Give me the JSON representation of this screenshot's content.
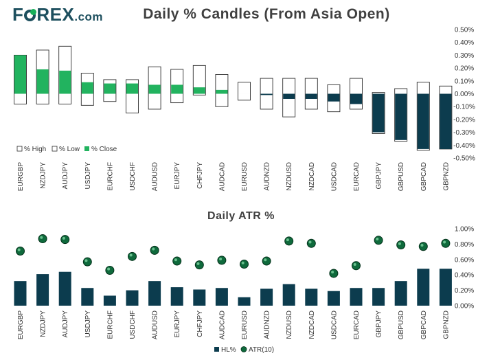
{
  "brand": {
    "logo_prefix": "F",
    "logo_suffix": "REX",
    "logo_domain": ".com",
    "logo_color": "#1d4f5e",
    "logo_accent": "#18b05a"
  },
  "colors": {
    "green": "#22b35f",
    "navy": "#0c3c4e",
    "white": "#ffffff",
    "outline": "#2a2a2a",
    "text": "#333333",
    "title": "#404040"
  },
  "chart_data": [
    {
      "type": "candlestick",
      "title": "Daily % Candles (From Asia Open)",
      "categories": [
        "EURGBP",
        "NZDJPY",
        "AUDJPY",
        "USDJPY",
        "EURCHF",
        "USDCHF",
        "AUDUSD",
        "EURJPY",
        "CHFJPY",
        "AUDCAD",
        "EURUSD",
        "AUDNZD",
        "NZDUSD",
        "NZDCAD",
        "USDCAD",
        "EURCAD",
        "GBPJPY",
        "GBPUSD",
        "GBPCAD",
        "GBPNZD"
      ],
      "series": [
        {
          "name": "% High",
          "values": [
            0.3,
            0.34,
            0.37,
            0.16,
            0.11,
            0.11,
            0.21,
            0.19,
            0.22,
            0.15,
            0.09,
            0.12,
            0.12,
            0.12,
            0.07,
            0.12,
            0.01,
            0.04,
            0.09,
            0.06
          ]
        },
        {
          "name": "% Low",
          "values": [
            -0.08,
            -0.08,
            -0.08,
            -0.09,
            -0.06,
            -0.15,
            -0.12,
            -0.07,
            -0.01,
            -0.1,
            -0.05,
            -0.12,
            -0.18,
            -0.12,
            -0.14,
            -0.12,
            -0.31,
            -0.37,
            -0.44,
            -0.43
          ]
        },
        {
          "name": "% Close",
          "values": [
            0.3,
            0.19,
            0.18,
            0.09,
            0.08,
            0.08,
            0.07,
            0.07,
            0.05,
            0.03,
            0.0,
            -0.01,
            -0.04,
            -0.04,
            -0.06,
            -0.08,
            -0.3,
            -0.36,
            -0.43,
            -0.43
          ]
        }
      ],
      "y_ticks": [
        "0.50%",
        "0.40%",
        "0.30%",
        "0.20%",
        "0.10%",
        "0.00%",
        "-0.10%",
        "-0.20%",
        "-0.30%",
        "-0.40%",
        "-0.50%"
      ],
      "ylim": [
        -0.5,
        0.5
      ],
      "legend": [
        "% High",
        "% Low",
        "% Close"
      ],
      "legend_position": "bottom-left"
    },
    {
      "type": "bar",
      "title": "Daily ATR %",
      "categories": [
        "EURGBP",
        "NZDJPY",
        "AUDJPY",
        "USDJPY",
        "EURCHF",
        "USDCHF",
        "AUDUSD",
        "EURJPY",
        "CHFJPY",
        "AUDCAD",
        "EURUSD",
        "AUDNZD",
        "NZDUSD",
        "NZDCAD",
        "USDCAD",
        "EURCAD",
        "GBPJPY",
        "GBPUSD",
        "GBPCAD",
        "GBPNZD"
      ],
      "series": [
        {
          "name": "HL%",
          "values": [
            0.32,
            0.41,
            0.44,
            0.23,
            0.13,
            0.2,
            0.32,
            0.24,
            0.21,
            0.23,
            0.11,
            0.22,
            0.28,
            0.22,
            0.19,
            0.23,
            0.23,
            0.32,
            0.48,
            0.48
          ]
        },
        {
          "name": "ATR(10)",
          "values": [
            0.71,
            0.87,
            0.86,
            0.57,
            0.46,
            0.64,
            0.72,
            0.58,
            0.53,
            0.59,
            0.54,
            0.58,
            0.84,
            0.81,
            0.42,
            0.52,
            0.85,
            0.79,
            0.77,
            0.81
          ]
        }
      ],
      "y_ticks": [
        "1.00%",
        "0.80%",
        "0.60%",
        "0.40%",
        "0.20%",
        "0.00%"
      ],
      "ylim": [
        0,
        1.0
      ],
      "legend": [
        "HL%",
        "ATR(10)"
      ],
      "legend_position": "bottom-center"
    }
  ]
}
